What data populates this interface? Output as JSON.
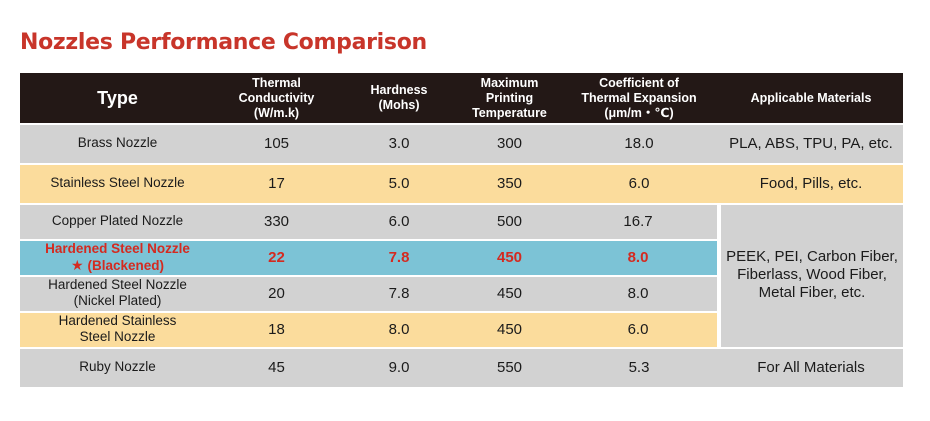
{
  "title": "Nozzles Performance Comparison",
  "headers": {
    "type": "Type",
    "conductivity": [
      "Thermal Conductivity",
      "(W/m.k)"
    ],
    "hardness": [
      "Hardness",
      "(Mohs)"
    ],
    "temperature": [
      "Maximum",
      "Printing",
      "Temperature"
    ],
    "expansion": [
      "Coefficient of",
      "Thermal Expansion",
      "(μm/m・℃)"
    ],
    "materials": "Applicable Materials"
  },
  "rows": [
    {
      "type": [
        "Brass Nozzle"
      ],
      "conductivity": "105",
      "hardness": "3.0",
      "temperature": "300",
      "expansion": "18.0",
      "materials": "PLA, ABS, TPU, PA, etc."
    },
    {
      "type": [
        "Stainless Steel Nozzle"
      ],
      "conductivity": "17",
      "hardness": "5.0",
      "temperature": "350",
      "expansion": "6.0",
      "materials": "Food, Pills, etc."
    },
    {
      "type": [
        "Copper Plated Nozzle"
      ],
      "conductivity": "330",
      "hardness": "6.0",
      "temperature": "500",
      "expansion": "16.7"
    },
    {
      "type": [
        "Hardened Steel Nozzle",
        "(Blackened)"
      ],
      "star": "★",
      "conductivity": "22",
      "hardness": "7.8",
      "temperature": "450",
      "expansion": "8.0"
    },
    {
      "type": [
        "Hardened Steel Nozzle",
        "(Nickel Plated)"
      ],
      "conductivity": "20",
      "hardness": "7.8",
      "temperature": "450",
      "expansion": "8.0"
    },
    {
      "type": [
        "Hardened Stainless",
        "Steel Nozzle"
      ],
      "conductivity": "18",
      "hardness": "8.0",
      "temperature": "450",
      "expansion": "6.0"
    },
    {
      "type": [
        "Ruby Nozzle"
      ],
      "conductivity": "45",
      "hardness": "9.0",
      "temperature": "550",
      "expansion": "5.3",
      "materials": "For All Materials"
    }
  ],
  "merged_materials": [
    "PEEK, PEI, Carbon Fiber,",
    "Fiberlass, Wood Fiber,",
    "Metal Fiber, etc."
  ],
  "colors": {
    "title": "#c8352a",
    "header_bg": "#231816",
    "gray_row": "#d2d2d2",
    "cream_row": "#fbdc9c",
    "highlight_row": "#7cc3d6",
    "highlight_text": "#d42a20"
  }
}
